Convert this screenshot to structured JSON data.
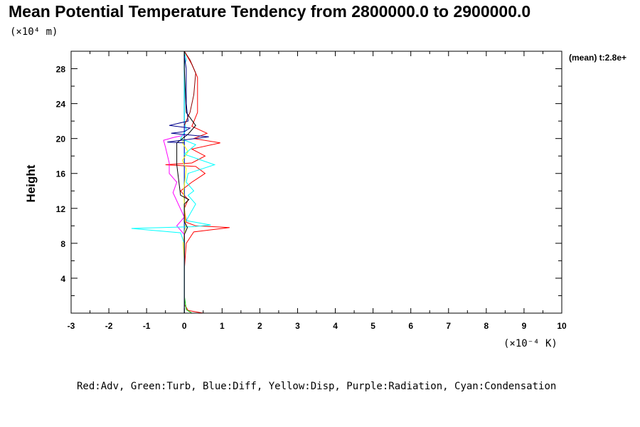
{
  "chart_data": {
    "type": "line",
    "title": "Mean Potential Temperature Tendency from 2800000.0 to 2900000.0",
    "y_unit_label": "(×10⁴ m)",
    "x_unit_label": "(×10⁻⁴ K)",
    "ylabel": "Height",
    "xlabel": "",
    "time_label": "(mean) t:2.8e+",
    "legend_text": "Red:Adv, Green:Turb, Blue:Diff, Yellow:Disp, Purple:Radiation, Cyan:Condensation",
    "xlim": [
      -3,
      10
    ],
    "ylim": [
      0,
      30
    ],
    "x_ticks": [
      -3,
      -2,
      -1,
      0,
      1,
      2,
      3,
      4,
      5,
      6,
      7,
      8,
      9,
      10
    ],
    "y_ticks": [
      4,
      8,
      12,
      16,
      20,
      24,
      28
    ],
    "grid": false,
    "series": [
      {
        "name": "Adv",
        "color": "#ff0000",
        "points": [
          [
            0.5,
            0
          ],
          [
            0.1,
            0.3
          ],
          [
            0,
            1
          ],
          [
            0,
            5
          ],
          [
            0.05,
            8
          ],
          [
            0.25,
            9.3
          ],
          [
            1.2,
            9.8
          ],
          [
            0.3,
            10
          ],
          [
            0.05,
            10.4
          ],
          [
            0,
            12
          ],
          [
            0.1,
            13
          ],
          [
            -0.1,
            14
          ],
          [
            0.2,
            15
          ],
          [
            0.55,
            16
          ],
          [
            0.3,
            16.8
          ],
          [
            -0.5,
            17
          ],
          [
            0.2,
            17.2
          ],
          [
            0.55,
            18
          ],
          [
            0.2,
            18.8
          ],
          [
            0.95,
            19.5
          ],
          [
            0.25,
            20
          ],
          [
            0.6,
            20.6
          ],
          [
            0.2,
            21.4
          ],
          [
            0.35,
            23
          ],
          [
            0.35,
            27
          ],
          [
            0.2,
            28.5
          ],
          [
            0,
            30
          ]
        ]
      },
      {
        "name": "Turb",
        "color": "#00cc00",
        "points": [
          [
            0.2,
            0
          ],
          [
            0.05,
            0.4
          ],
          [
            0,
            2
          ],
          [
            0,
            30
          ]
        ]
      },
      {
        "name": "Diff",
        "color": "#0000ff",
        "points": [
          [
            0,
            0
          ],
          [
            0,
            30
          ]
        ]
      },
      {
        "name": "Disp",
        "color": "#ffff00",
        "points": [
          [
            0,
            1
          ],
          [
            0,
            6
          ],
          [
            -0.03,
            8
          ],
          [
            0.03,
            10
          ],
          [
            -0.02,
            14
          ],
          [
            0.05,
            16.5
          ],
          [
            -0.05,
            17.5
          ],
          [
            0.1,
            18.5
          ],
          [
            -0.05,
            19.5
          ],
          [
            0,
            20
          ]
        ]
      },
      {
        "name": "Radiation",
        "color": "#ff00ff",
        "points": [
          [
            0,
            0
          ],
          [
            0,
            9
          ],
          [
            -0.2,
            10
          ],
          [
            0,
            11
          ],
          [
            -0.3,
            13.8
          ],
          [
            -0.2,
            15
          ],
          [
            -0.4,
            16
          ],
          [
            -0.4,
            17.2
          ],
          [
            -0.5,
            19
          ],
          [
            -0.55,
            19.8
          ],
          [
            -0.3,
            20.1
          ],
          [
            0,
            20.4
          ]
        ]
      },
      {
        "name": "Condensation",
        "color": "#00ffff",
        "points": [
          [
            0,
            0
          ],
          [
            0,
            8
          ],
          [
            -0.1,
            9.2
          ],
          [
            -1.4,
            9.7
          ],
          [
            0.2,
            9.9
          ],
          [
            0.7,
            10.1
          ],
          [
            0.05,
            10.6
          ],
          [
            0.3,
            12.5
          ],
          [
            0.1,
            13.5
          ],
          [
            0.25,
            14
          ],
          [
            0.05,
            15
          ],
          [
            0.1,
            16
          ],
          [
            0.8,
            17
          ],
          [
            0,
            18.2
          ],
          [
            0.3,
            19.3
          ],
          [
            -0.1,
            20
          ],
          [
            0.05,
            21
          ],
          [
            0,
            22
          ],
          [
            0,
            28.5
          ],
          [
            0.05,
            29
          ],
          [
            0,
            30
          ]
        ]
      },
      {
        "name": "mean",
        "color": "#000000",
        "points": [
          [
            0,
            0
          ],
          [
            0,
            9
          ],
          [
            0.08,
            9.8
          ],
          [
            0,
            10.5
          ],
          [
            0,
            12.5
          ],
          [
            0.12,
            13
          ],
          [
            -0.1,
            13.5
          ],
          [
            -0.2,
            17
          ],
          [
            -0.2,
            19.5
          ],
          [
            0.1,
            20.5
          ],
          [
            0.3,
            21.5
          ],
          [
            0.05,
            23
          ],
          [
            0,
            28
          ],
          [
            0,
            30
          ]
        ]
      },
      {
        "name": "",
        "color": "#00008b",
        "points": [
          [
            0,
            19.5
          ],
          [
            -0.45,
            19.6
          ],
          [
            0.65,
            20.2
          ],
          [
            -0.35,
            20.6
          ],
          [
            0,
            20.8
          ],
          [
            0.15,
            21.2
          ],
          [
            -0.4,
            21.5
          ],
          [
            0.1,
            22
          ],
          [
            0.05,
            24
          ],
          [
            0.05,
            28
          ],
          [
            0,
            29.5
          ]
        ]
      },
      {
        "name": "",
        "color": "#8b0000",
        "points": [
          [
            0,
            21.5
          ],
          [
            0.15,
            23
          ],
          [
            0.25,
            25
          ],
          [
            0.3,
            27.5
          ],
          [
            0.15,
            29
          ],
          [
            0,
            30
          ]
        ]
      }
    ]
  }
}
